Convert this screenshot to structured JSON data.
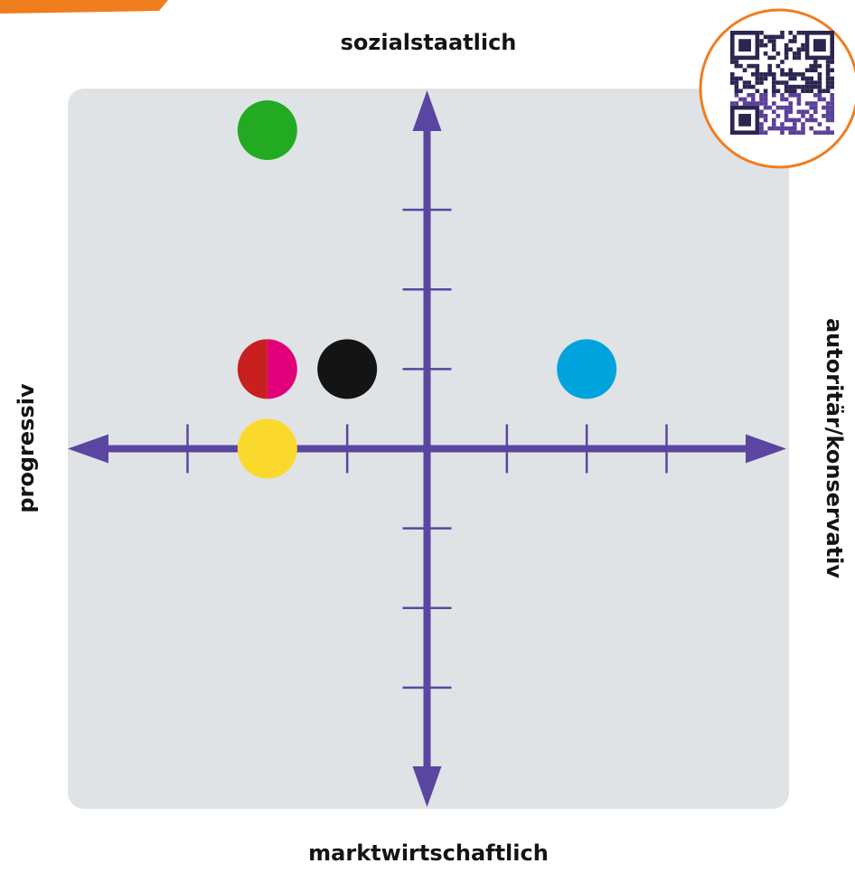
{
  "chart_data": {
    "type": "scatter",
    "axis_labels": {
      "top": "sozialstaatlich",
      "bottom": "marktwirtschaftlich",
      "left": "progressiv",
      "right": "autoritär/konservativ"
    },
    "x": [
      -2,
      -2,
      -1,
      2,
      -2
    ],
    "values": [
      4,
      1,
      1,
      1,
      0
    ],
    "colors": [
      [
        "#22ab22"
      ],
      [
        "#c8201e",
        "#e2007a"
      ],
      [
        "#141414"
      ],
      [
        "#00a3dc"
      ],
      [
        "#fbd92c"
      ]
    ],
    "xlim": [
      -4.5,
      4.5
    ],
    "ylim": [
      -4.5,
      4.5
    ],
    "xticks": [
      -3,
      -2,
      -1,
      1,
      2,
      3
    ],
    "yticks": [
      -3,
      -2,
      -1,
      1,
      2,
      3
    ],
    "axis_color": "#5a46a0"
  }
}
